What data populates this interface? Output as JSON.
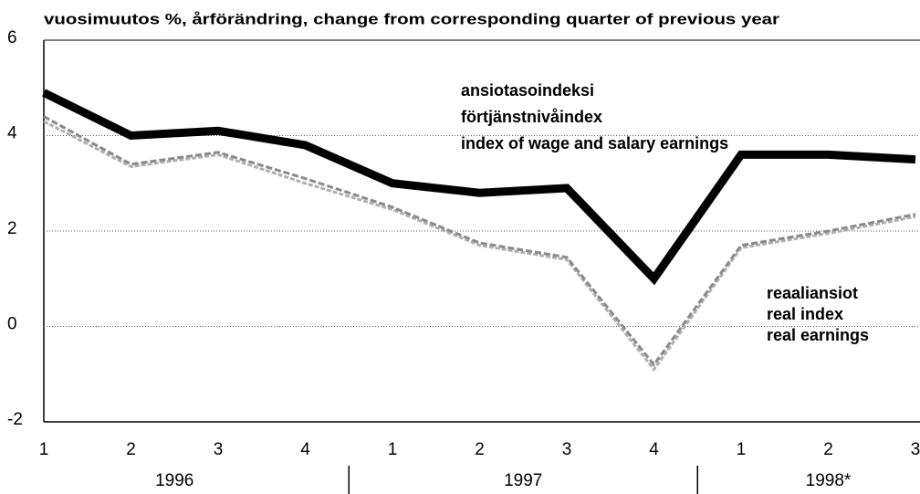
{
  "chart_data": {
    "type": "line",
    "title": "vuosimuutos %, årförändring, change from corresponding quarter of previous year",
    "categories": [
      "1",
      "2",
      "3",
      "4",
      "1",
      "2",
      "3",
      "4",
      "1",
      "2",
      "3"
    ],
    "x_groups": [
      {
        "label": "1996",
        "count": 4
      },
      {
        "label": "1997",
        "count": 4
      },
      {
        "label": "1998*",
        "count": 3
      }
    ],
    "series": [
      {
        "label": [
          "ansiotasoindeksi",
          "förtjänstnivåindex",
          "index of wage and salary earnings"
        ],
        "color": "#000000",
        "values": [
          4.9,
          4.0,
          4.1,
          3.8,
          3.0,
          2.8,
          2.9,
          1.0,
          3.6,
          3.6,
          3.5
        ]
      },
      {
        "label": [
          "reaaliansiot",
          "real index",
          "real earnings"
        ],
        "color": "#8a8a8a",
        "values": [
          4.4,
          3.4,
          3.65,
          3.1,
          2.5,
          1.75,
          1.45,
          -0.8,
          1.7,
          2.0,
          2.35
        ]
      },
      {
        "color": "#b0b0b0",
        "values": [
          4.3,
          3.35,
          3.6,
          3.0,
          2.45,
          1.7,
          1.4,
          -0.9,
          1.65,
          1.95,
          2.3
        ]
      }
    ],
    "ylim": [
      -2,
      6
    ],
    "yticks": [
      -2,
      0,
      2,
      4,
      6
    ],
    "grid": true
  }
}
